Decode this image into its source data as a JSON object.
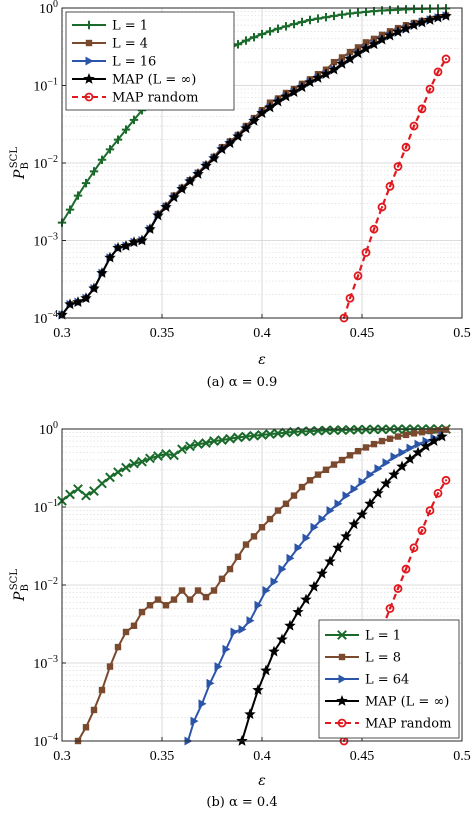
{
  "chart_data": [
    {
      "type": "line",
      "caption": "(a) α = 0.9",
      "xlabel": "ε",
      "ylabel": "P_B^SCL",
      "xlim": [
        0.3,
        0.5
      ],
      "ylim": [
        0.0001,
        1
      ],
      "yscale": "log",
      "x_ticks": [
        "0.3",
        "0.35",
        "0.4",
        "0.45",
        "0.5"
      ],
      "y_ticks": [
        "10^-4",
        "10^-3",
        "10^-2",
        "10^-1",
        "10^0"
      ],
      "grid": "on",
      "legend_position": "top-left",
      "series": [
        {
          "name": "L = 1",
          "color": "#1a6b2b",
          "marker": "plus",
          "dashed": false,
          "x": [
            0.3,
            0.304,
            0.308,
            0.312,
            0.316,
            0.32,
            0.324,
            0.328,
            0.332,
            0.336,
            0.34,
            0.344,
            0.348,
            0.352,
            0.356,
            0.36,
            0.364,
            0.368,
            0.372,
            0.376,
            0.38,
            0.384,
            0.388,
            0.392,
            0.396,
            0.4,
            0.404,
            0.408,
            0.412,
            0.416,
            0.42,
            0.424,
            0.428,
            0.432,
            0.436,
            0.44,
            0.444,
            0.448,
            0.452,
            0.456,
            0.46,
            0.464,
            0.468,
            0.472,
            0.476,
            0.48,
            0.484,
            0.488,
            0.492
          ],
          "y": [
            0.0017,
            0.0025,
            0.0038,
            0.0055,
            0.0078,
            0.011,
            0.015,
            0.02,
            0.027,
            0.036,
            0.048,
            0.058,
            0.072,
            0.088,
            0.105,
            0.125,
            0.15,
            0.175,
            0.2,
            0.23,
            0.26,
            0.3,
            0.34,
            0.38,
            0.42,
            0.46,
            0.5,
            0.54,
            0.58,
            0.62,
            0.66,
            0.7,
            0.73,
            0.76,
            0.79,
            0.82,
            0.85,
            0.87,
            0.89,
            0.91,
            0.93,
            0.94,
            0.95,
            0.96,
            0.97,
            0.975,
            0.98,
            0.985,
            0.99
          ]
        },
        {
          "name": "L = 4",
          "color": "#7b4a2e",
          "marker": "square",
          "dashed": false,
          "x": [
            0.3,
            0.304,
            0.308,
            0.312,
            0.316,
            0.32,
            0.324,
            0.328,
            0.332,
            0.336,
            0.34,
            0.344,
            0.348,
            0.352,
            0.356,
            0.36,
            0.364,
            0.368,
            0.372,
            0.376,
            0.38,
            0.384,
            0.388,
            0.392,
            0.396,
            0.4,
            0.404,
            0.408,
            0.412,
            0.416,
            0.42,
            0.424,
            0.428,
            0.432,
            0.436,
            0.44,
            0.444,
            0.448,
            0.452,
            0.456,
            0.46,
            0.464,
            0.468,
            0.472,
            0.476,
            0.48,
            0.484,
            0.488,
            0.492
          ],
          "y": [
            0.00011,
            0.00015,
            0.00016,
            0.00018,
            0.00024,
            0.00038,
            0.0006,
            0.0008,
            0.00085,
            0.00095,
            0.001,
            0.0014,
            0.0022,
            0.0028,
            0.0038,
            0.0048,
            0.006,
            0.0075,
            0.0095,
            0.012,
            0.016,
            0.019,
            0.023,
            0.03,
            0.038,
            0.048,
            0.06,
            0.068,
            0.08,
            0.09,
            0.105,
            0.12,
            0.14,
            0.16,
            0.2,
            0.23,
            0.27,
            0.31,
            0.36,
            0.4,
            0.45,
            0.5,
            0.55,
            0.6,
            0.64,
            0.68,
            0.72,
            0.76,
            0.8
          ]
        },
        {
          "name": "L = 16",
          "color": "#2b55a8",
          "marker": "triangle-right",
          "dashed": false,
          "x": [
            0.3,
            0.304,
            0.308,
            0.312,
            0.316,
            0.32,
            0.324,
            0.328,
            0.332,
            0.336,
            0.34,
            0.344,
            0.348,
            0.352,
            0.356,
            0.36,
            0.364,
            0.368,
            0.372,
            0.376,
            0.38,
            0.384,
            0.388,
            0.392,
            0.396,
            0.4,
            0.404,
            0.408,
            0.412,
            0.416,
            0.42,
            0.424,
            0.428,
            0.432,
            0.436,
            0.44,
            0.444,
            0.448,
            0.452,
            0.456,
            0.46,
            0.464,
            0.468,
            0.472,
            0.476,
            0.48,
            0.484,
            0.488,
            0.492
          ],
          "y": [
            0.00011,
            0.00015,
            0.00016,
            0.00018,
            0.00024,
            0.00038,
            0.0006,
            0.0008,
            0.00085,
            0.00095,
            0.001,
            0.0014,
            0.0021,
            0.0027,
            0.0036,
            0.0046,
            0.0058,
            0.0072,
            0.0092,
            0.0115,
            0.015,
            0.018,
            0.022,
            0.028,
            0.035,
            0.044,
            0.052,
            0.062,
            0.072,
            0.082,
            0.095,
            0.11,
            0.125,
            0.14,
            0.16,
            0.19,
            0.22,
            0.26,
            0.3,
            0.34,
            0.39,
            0.44,
            0.49,
            0.54,
            0.6,
            0.65,
            0.7,
            0.75,
            0.79
          ]
        },
        {
          "name": "MAP (L = ∞)",
          "color": "#000000",
          "marker": "star",
          "dashed": false,
          "x": [
            0.3,
            0.304,
            0.308,
            0.312,
            0.316,
            0.32,
            0.324,
            0.328,
            0.332,
            0.336,
            0.34,
            0.344,
            0.348,
            0.352,
            0.356,
            0.36,
            0.364,
            0.368,
            0.372,
            0.376,
            0.38,
            0.384,
            0.388,
            0.392,
            0.396,
            0.4,
            0.404,
            0.408,
            0.412,
            0.416,
            0.42,
            0.424,
            0.428,
            0.432,
            0.436,
            0.44,
            0.444,
            0.448,
            0.452,
            0.456,
            0.46,
            0.464,
            0.468,
            0.472,
            0.476,
            0.48,
            0.484,
            0.488,
            0.492
          ],
          "y": [
            0.00011,
            0.00015,
            0.00016,
            0.00018,
            0.00024,
            0.00038,
            0.0006,
            0.0008,
            0.00085,
            0.00095,
            0.001,
            0.0014,
            0.0021,
            0.0027,
            0.0036,
            0.0046,
            0.0058,
            0.0072,
            0.0092,
            0.0115,
            0.015,
            0.018,
            0.022,
            0.028,
            0.035,
            0.044,
            0.052,
            0.062,
            0.072,
            0.082,
            0.095,
            0.11,
            0.125,
            0.14,
            0.16,
            0.19,
            0.22,
            0.26,
            0.3,
            0.34,
            0.39,
            0.44,
            0.49,
            0.54,
            0.6,
            0.65,
            0.7,
            0.75,
            0.79
          ]
        },
        {
          "name": "MAP random",
          "color": "#e0191f",
          "marker": "circle",
          "dashed": true,
          "x": [
            0.441,
            0.444,
            0.448,
            0.452,
            0.456,
            0.46,
            0.464,
            0.468,
            0.472,
            0.476,
            0.48,
            0.484,
            0.488,
            0.492
          ],
          "y": [
            0.0001,
            0.00018,
            0.00035,
            0.0007,
            0.0014,
            0.0027,
            0.005,
            0.009,
            0.016,
            0.03,
            0.05,
            0.09,
            0.15,
            0.22
          ]
        }
      ]
    },
    {
      "type": "line",
      "caption": "(b) α = 0.4",
      "xlabel": "ε",
      "ylabel": "P_B^SCL",
      "xlim": [
        0.3,
        0.5
      ],
      "ylim": [
        0.0001,
        1
      ],
      "yscale": "log",
      "x_ticks": [
        "0.3",
        "0.35",
        "0.4",
        "0.45",
        "0.5"
      ],
      "y_ticks": [
        "10^-4",
        "10^-3",
        "10^-2",
        "10^-1",
        "10^0"
      ],
      "grid": "on",
      "legend_position": "bottom-right",
      "series": [
        {
          "name": "L = 1",
          "color": "#1a6b2b",
          "marker": "cross",
          "dashed": false,
          "x": [
            0.3,
            0.304,
            0.308,
            0.312,
            0.316,
            0.32,
            0.324,
            0.328,
            0.332,
            0.336,
            0.34,
            0.344,
            0.348,
            0.352,
            0.356,
            0.36,
            0.364,
            0.368,
            0.372,
            0.376,
            0.38,
            0.384,
            0.388,
            0.392,
            0.396,
            0.4,
            0.404,
            0.408,
            0.412,
            0.416,
            0.42,
            0.424,
            0.428,
            0.432,
            0.436,
            0.44,
            0.444,
            0.448,
            0.452,
            0.456,
            0.46,
            0.464,
            0.468,
            0.472,
            0.476,
            0.48,
            0.484,
            0.488,
            0.492
          ],
          "y": [
            0.12,
            0.145,
            0.17,
            0.14,
            0.16,
            0.2,
            0.24,
            0.28,
            0.32,
            0.36,
            0.38,
            0.42,
            0.45,
            0.48,
            0.46,
            0.55,
            0.6,
            0.64,
            0.66,
            0.7,
            0.72,
            0.75,
            0.78,
            0.8,
            0.82,
            0.84,
            0.86,
            0.88,
            0.9,
            0.92,
            0.93,
            0.94,
            0.95,
            0.96,
            0.965,
            0.97,
            0.975,
            0.98,
            0.984,
            0.988,
            0.99,
            0.992,
            0.994,
            0.995,
            0.996,
            0.997,
            0.998,
            0.999,
            0.999
          ]
        },
        {
          "name": "L = 8",
          "color": "#7b4a2e",
          "marker": "square",
          "dashed": false,
          "x": [
            0.308,
            0.312,
            0.316,
            0.32,
            0.324,
            0.328,
            0.332,
            0.336,
            0.34,
            0.344,
            0.348,
            0.352,
            0.356,
            0.36,
            0.364,
            0.368,
            0.372,
            0.376,
            0.38,
            0.384,
            0.388,
            0.392,
            0.396,
            0.4,
            0.404,
            0.408,
            0.412,
            0.416,
            0.42,
            0.424,
            0.428,
            0.432,
            0.436,
            0.44,
            0.444,
            0.448,
            0.452,
            0.456,
            0.46,
            0.464,
            0.468,
            0.472,
            0.476,
            0.48,
            0.484,
            0.488,
            0.492
          ],
          "y": [
            0.0001,
            0.00015,
            0.00025,
            0.00045,
            0.0009,
            0.0016,
            0.0025,
            0.003,
            0.0045,
            0.0055,
            0.0065,
            0.0055,
            0.0065,
            0.0085,
            0.0065,
            0.0085,
            0.007,
            0.0085,
            0.012,
            0.016,
            0.023,
            0.033,
            0.042,
            0.055,
            0.07,
            0.09,
            0.11,
            0.14,
            0.18,
            0.22,
            0.26,
            0.3,
            0.35,
            0.4,
            0.46,
            0.52,
            0.58,
            0.64,
            0.7,
            0.75,
            0.8,
            0.84,
            0.88,
            0.91,
            0.94,
            0.96,
            0.98
          ]
        },
        {
          "name": "L = 64",
          "color": "#2b55a8",
          "marker": "triangle-right",
          "dashed": false,
          "x": [
            0.363,
            0.366,
            0.37,
            0.374,
            0.378,
            0.382,
            0.386,
            0.39,
            0.394,
            0.398,
            0.402,
            0.406,
            0.41,
            0.414,
            0.418,
            0.422,
            0.426,
            0.43,
            0.434,
            0.438,
            0.442,
            0.446,
            0.45,
            0.454,
            0.458,
            0.462,
            0.466,
            0.47,
            0.474,
            0.478,
            0.482,
            0.486,
            0.49
          ],
          "y": [
            0.0001,
            0.00018,
            0.0003,
            0.00055,
            0.0009,
            0.0015,
            0.0025,
            0.0027,
            0.0035,
            0.0055,
            0.0085,
            0.011,
            0.016,
            0.022,
            0.03,
            0.04,
            0.055,
            0.07,
            0.09,
            0.11,
            0.14,
            0.17,
            0.21,
            0.26,
            0.31,
            0.37,
            0.44,
            0.5,
            0.57,
            0.64,
            0.7,
            0.76,
            0.82
          ]
        },
        {
          "name": "MAP (L = ∞)",
          "color": "#000000",
          "marker": "star",
          "dashed": false,
          "x": [
            0.39,
            0.394,
            0.398,
            0.402,
            0.406,
            0.41,
            0.414,
            0.418,
            0.422,
            0.426,
            0.43,
            0.434,
            0.438,
            0.442,
            0.446,
            0.45,
            0.454,
            0.458,
            0.462,
            0.466,
            0.47,
            0.474,
            0.478,
            0.482,
            0.486,
            0.49
          ],
          "y": [
            0.0001,
            0.00022,
            0.00045,
            0.0008,
            0.0014,
            0.002,
            0.003,
            0.0045,
            0.0065,
            0.0095,
            0.014,
            0.02,
            0.03,
            0.042,
            0.06,
            0.08,
            0.11,
            0.15,
            0.2,
            0.26,
            0.33,
            0.41,
            0.5,
            0.6,
            0.7,
            0.8
          ]
        },
        {
          "name": "MAP random",
          "color": "#e0191f",
          "marker": "circle",
          "dashed": true,
          "x": [
            0.441,
            0.444,
            0.448,
            0.452,
            0.456,
            0.46,
            0.464,
            0.468,
            0.472,
            0.476,
            0.48,
            0.484,
            0.488,
            0.492
          ],
          "y": [
            0.0001,
            0.00018,
            0.00035,
            0.0007,
            0.0014,
            0.0027,
            0.005,
            0.009,
            0.016,
            0.03,
            0.05,
            0.09,
            0.15,
            0.22
          ]
        }
      ]
    }
  ]
}
